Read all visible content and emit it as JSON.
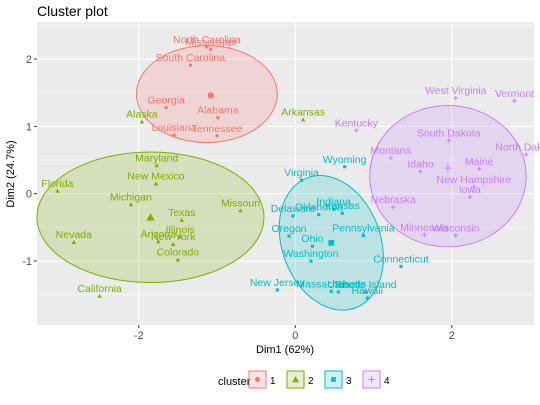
{
  "chart_data": {
    "type": "scatter",
    "title": "Cluster plot",
    "xlabel": "Dim1 (62%)",
    "ylabel": "Dim2 (24.7%)",
    "xlim": [
      -3.3,
      3.05
    ],
    "ylim": [
      -1.95,
      2.55
    ],
    "xticks": [
      -2,
      0,
      2
    ],
    "yticks": [
      -1,
      0,
      1,
      2
    ],
    "grid": true,
    "legend": {
      "title": "cluster",
      "position": "bottom",
      "entries": [
        "1",
        "2",
        "3",
        "4"
      ]
    },
    "colors": {
      "1": "#F8766D",
      "2": "#7CAE00",
      "3": "#00BFC4",
      "4": "#C77CFF"
    },
    "panel_background": "#EBEBEB",
    "clusters": [
      {
        "name": "1",
        "centroid": [
          -1.08,
          1.46
        ],
        "ellipse": {
          "cx": -1.13,
          "cy": 1.48,
          "rx": 0.9,
          "ry": 0.72
        },
        "points": [
          {
            "label": "Mississippi",
            "x": -1.08,
            "y": 2.14
          },
          {
            "label": "North Carolina",
            "x": -1.13,
            "y": 2.18
          },
          {
            "label": "South Carolina",
            "x": -1.34,
            "y": 1.91
          },
          {
            "label": "Georgia",
            "x": -1.65,
            "y": 1.28
          },
          {
            "label": "Alabama",
            "x": -0.99,
            "y": 1.13
          },
          {
            "label": "Louisiana",
            "x": -1.55,
            "y": 0.87
          },
          {
            "label": "Tennessee",
            "x": -1.0,
            "y": 0.86
          }
        ]
      },
      {
        "name": "2",
        "centroid": [
          -1.85,
          -0.35
        ],
        "ellipse": {
          "cx": -1.85,
          "cy": -0.35,
          "rx": 1.45,
          "ry": 0.97
        },
        "points": [
          {
            "label": "Alaska",
            "x": -1.96,
            "y": 1.07
          },
          {
            "label": "Arkansas",
            "x": 0.1,
            "y": 1.1
          },
          {
            "label": "Florida",
            "x": -3.04,
            "y": 0.04
          },
          {
            "label": "Maryland",
            "x": -1.77,
            "y": 0.42
          },
          {
            "label": "New Mexico",
            "x": -1.78,
            "y": 0.15
          },
          {
            "label": "Michigan",
            "x": -2.1,
            "y": -0.16
          },
          {
            "label": "Texas",
            "x": -1.45,
            "y": -0.39
          },
          {
            "label": "Missouri",
            "x": -0.7,
            "y": -0.25
          },
          {
            "label": "Illinois",
            "x": -1.47,
            "y": -0.64
          },
          {
            "label": "Arizona",
            "x": -1.75,
            "y": -0.71
          },
          {
            "label": "New York",
            "x": -1.56,
            "y": -0.75
          },
          {
            "label": "Colorado",
            "x": -1.5,
            "y": -0.98
          },
          {
            "label": "Nevada",
            "x": -2.83,
            "y": -0.72
          },
          {
            "label": "California",
            "x": -2.5,
            "y": -1.52
          }
        ]
      },
      {
        "name": "3",
        "centroid": [
          0.46,
          -0.73
        ],
        "ellipse": {
          "cx": 0.46,
          "cy": -0.73,
          "rx": 0.63,
          "ry": 1.03,
          "angle_deg": -20
        },
        "points": [
          {
            "label": "Virginia",
            "x": 0.08,
            "y": 0.2
          },
          {
            "label": "Wyoming",
            "x": 0.63,
            "y": 0.4
          },
          {
            "label": "Indiana",
            "x": 0.49,
            "y": -0.23
          },
          {
            "label": "Delaware",
            "x": -0.03,
            "y": -0.33
          },
          {
            "label": "Oklahoma",
            "x": 0.3,
            "y": -0.31
          },
          {
            "label": "Kansas",
            "x": 0.6,
            "y": -0.29
          },
          {
            "label": "Oregon",
            "x": -0.08,
            "y": -0.63
          },
          {
            "label": "Pennsylvania",
            "x": 0.87,
            "y": -0.62
          },
          {
            "label": "Ohio",
            "x": 0.22,
            "y": -0.78
          },
          {
            "label": "Washington",
            "x": 0.2,
            "y": -1.0
          },
          {
            "label": "Connecticut",
            "x": 1.35,
            "y": -1.08
          },
          {
            "label": "New Jersey",
            "x": -0.23,
            "y": -1.43
          },
          {
            "label": "Massachusetts",
            "x": 0.46,
            "y": -1.45
          },
          {
            "label": "Utah",
            "x": 0.55,
            "y": -1.46
          },
          {
            "label": "Rhode Island",
            "x": 0.9,
            "y": -1.46
          },
          {
            "label": "Hawaii",
            "x": 0.92,
            "y": -1.55
          }
        ]
      },
      {
        "name": "4",
        "centroid": [
          1.95,
          0.38
        ],
        "ellipse": {
          "cx": 1.95,
          "cy": 0.26,
          "rx": 1.0,
          "ry": 1.05
        },
        "points": [
          {
            "label": "West Virginia",
            "x": 2.05,
            "y": 1.42
          },
          {
            "label": "Vermont",
            "x": 2.8,
            "y": 1.38
          },
          {
            "label": "Kentucky",
            "x": 0.78,
            "y": 0.94
          },
          {
            "label": "South Dakota",
            "x": 1.96,
            "y": 0.79
          },
          {
            "label": "North Dakota",
            "x": 2.95,
            "y": 0.58
          },
          {
            "label": "Montana",
            "x": 1.22,
            "y": 0.53
          },
          {
            "label": "Maine",
            "x": 2.35,
            "y": 0.37
          },
          {
            "label": "Idaho",
            "x": 1.6,
            "y": 0.33
          },
          {
            "label": "New Hampshire",
            "x": 2.28,
            "y": 0.1
          },
          {
            "label": "Iowa",
            "x": 2.23,
            "y": -0.05
          },
          {
            "label": "Nebraska",
            "x": 1.25,
            "y": -0.2
          },
          {
            "label": "Minnesota",
            "x": 1.65,
            "y": -0.61
          },
          {
            "label": "Wisconsin",
            "x": 2.05,
            "y": -0.62
          }
        ]
      }
    ]
  }
}
